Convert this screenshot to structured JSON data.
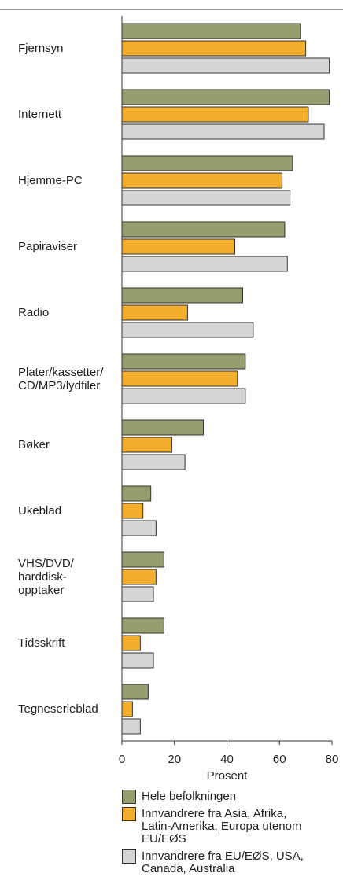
{
  "chart_data": {
    "type": "bar",
    "orientation": "horizontal",
    "categories": [
      "Fjernsyn",
      "Internett",
      "Hjemme-PC",
      "Papiraviser",
      "Radio",
      "Plater/kassetter/\nCD/MP3/lydfiler",
      "Bøker",
      "Ukeblad",
      "VHS/DVD/\nharddisk-\nopptaker",
      "Tidsskrift",
      "Tegneserieblad"
    ],
    "series": [
      {
        "name": "Hele befolkningen",
        "color": "#959e6f",
        "values": [
          68,
          79,
          65,
          62,
          46,
          47,
          31,
          11,
          16,
          16,
          10
        ]
      },
      {
        "name": "Innvandrere fra Asia, Afrika,\nLatin-Amerika, Europa utenom\nEU/EØS",
        "color": "#f4ae2d",
        "values": [
          70,
          71,
          61,
          43,
          25,
          44,
          19,
          8,
          13,
          7,
          4
        ]
      },
      {
        "name": "Innvandrere fra EU/EØS, USA,\nCanada, Australia",
        "color": "#d5d5d5",
        "values": [
          79,
          77,
          64,
          63,
          50,
          47,
          24,
          13,
          12,
          12,
          7
        ]
      }
    ],
    "xlabel": "Prosent",
    "xlim": [
      0,
      80
    ],
    "xticks": [
      0,
      20,
      40,
      60,
      80
    ],
    "grid": false
  }
}
